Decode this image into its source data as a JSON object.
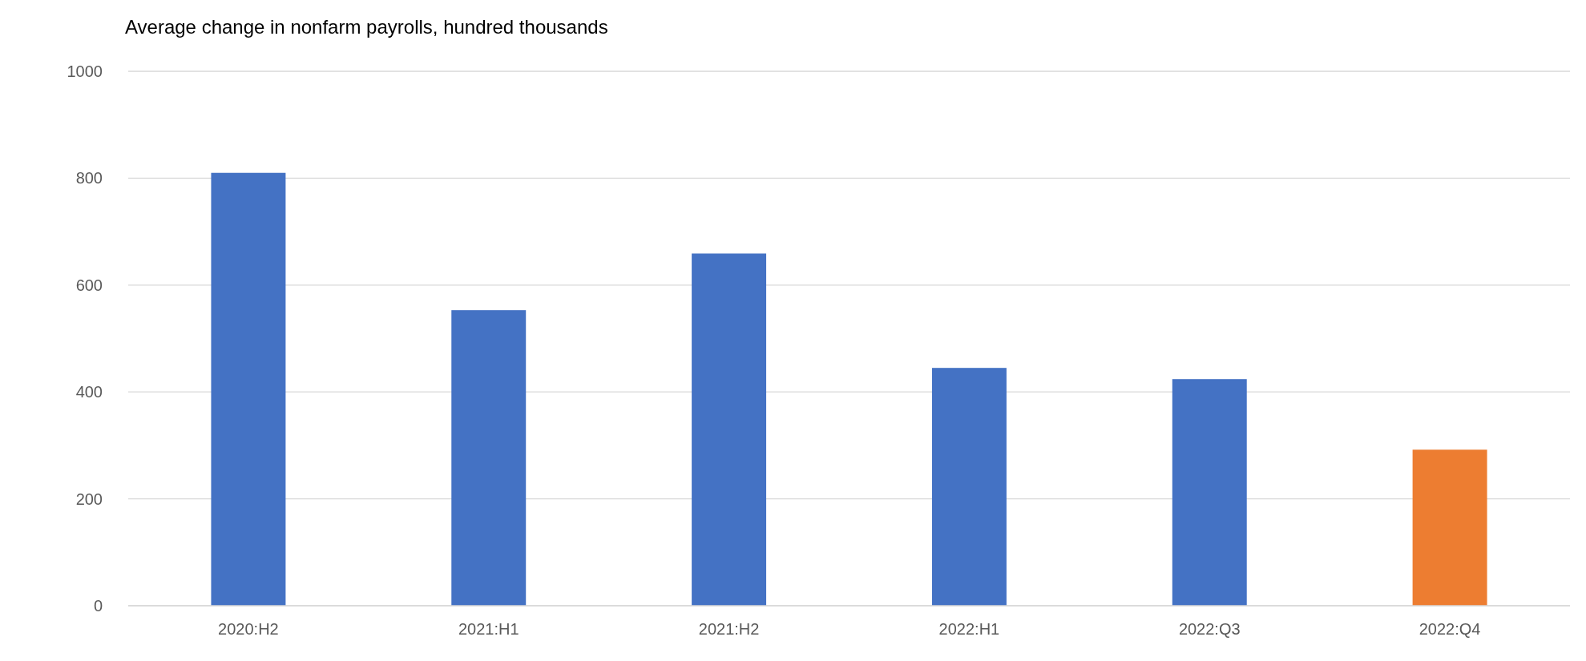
{
  "chart_data": {
    "type": "bar",
    "title": "Average change in nonfarm payrolls, hundred thousands",
    "categories": [
      "2020:H2",
      "2021:H1",
      "2021:H2",
      "2022:H1",
      "2022:Q3",
      "2022:Q4"
    ],
    "values": [
      810,
      553,
      659,
      445,
      424,
      292
    ],
    "colors": [
      "#4472c4",
      "#4472c4",
      "#4472c4",
      "#4472c4",
      "#4472c4",
      "#ed7d31"
    ],
    "ylim": [
      0,
      1000
    ],
    "yticks": [
      0,
      200,
      400,
      600,
      800,
      1000
    ],
    "grid": "y"
  }
}
